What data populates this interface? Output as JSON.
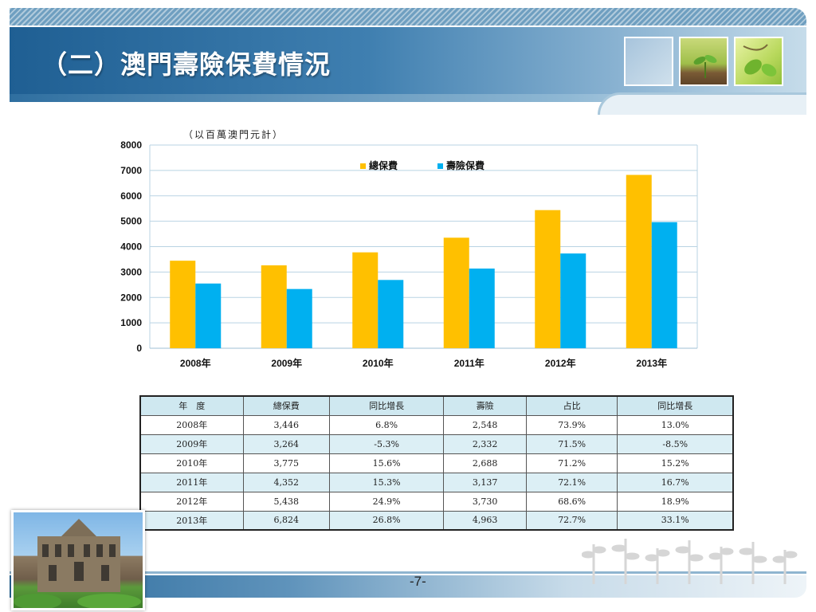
{
  "header": {
    "title": "（二）澳門壽險保費情況",
    "thumbnails": [
      "blank-thumbnail",
      "sprout-thumbnail",
      "leaf-thumbnail"
    ]
  },
  "chart_data": {
    "type": "bar",
    "unit_note": "（以百萬澳門元計）",
    "categories": [
      "2008年",
      "2009年",
      "2010年",
      "2011年",
      "2012年",
      "2013年"
    ],
    "series": [
      {
        "name": "總保費",
        "color": "#ffc000",
        "values": [
          3446,
          3264,
          3775,
          4352,
          5438,
          6824
        ]
      },
      {
        "name": "壽險保費",
        "color": "#00b0f0",
        "values": [
          2548,
          2332,
          2688,
          3137,
          3730,
          4963
        ]
      }
    ],
    "ylim": [
      0,
      8000
    ],
    "yticks": [
      "0",
      "1000",
      "2000",
      "3000",
      "4000",
      "5000",
      "6000",
      "7000",
      "8000"
    ],
    "ytick_values": [
      0,
      1000,
      2000,
      3000,
      4000,
      5000,
      6000,
      7000,
      8000
    ],
    "grid": true,
    "legend": "top-center"
  },
  "table": {
    "headers": [
      "年　度",
      "總保費",
      "同比增長",
      "壽險",
      "占比",
      "同比增長"
    ],
    "rows": [
      [
        "2008年",
        "3,446",
        "6.8%",
        "2,548",
        "73.9%",
        "13.0%"
      ],
      [
        "2009年",
        "3,264",
        "-5.3%",
        "2,332",
        "71.5%",
        "-8.5%"
      ],
      [
        "2010年",
        "3,775",
        "15.6%",
        "2,688",
        "71.2%",
        "15.2%"
      ],
      [
        "2011年",
        "4,352",
        "15.3%",
        "3,137",
        "72.1%",
        "16.7%"
      ],
      [
        "2012年",
        "5,438",
        "24.9%",
        "3,730",
        "68.6%",
        "18.9%"
      ],
      [
        "2013年",
        "6,824",
        "26.8%",
        "4,963",
        "72.7%",
        "33.1%"
      ]
    ]
  },
  "footer": {
    "page_number": "-7-"
  }
}
